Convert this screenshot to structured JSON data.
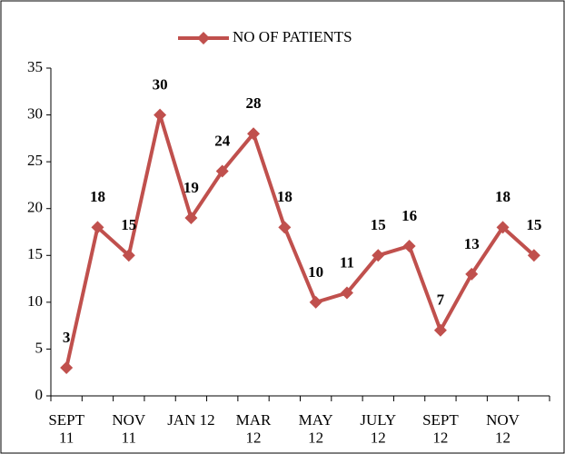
{
  "chart_data": {
    "type": "line",
    "categories": [
      "SEPT\n11",
      null,
      "NOV\n11",
      null,
      "JAN 12",
      null,
      "MAR\n12",
      null,
      "MAY\n12",
      null,
      "JULY\n12",
      null,
      "SEPT\n12",
      null,
      "NOV\n12",
      null
    ],
    "series": [
      {
        "name": "NO OF PATIENTS",
        "color": "#c0504d",
        "values": [
          3,
          18,
          15,
          30,
          19,
          24,
          28,
          18,
          10,
          11,
          15,
          16,
          7,
          13,
          18,
          15
        ]
      }
    ],
    "ylim": [
      0,
      35
    ],
    "yticks": [
      0,
      5,
      10,
      15,
      20,
      25,
      30,
      35
    ],
    "legend": "top",
    "data_labels": true
  }
}
